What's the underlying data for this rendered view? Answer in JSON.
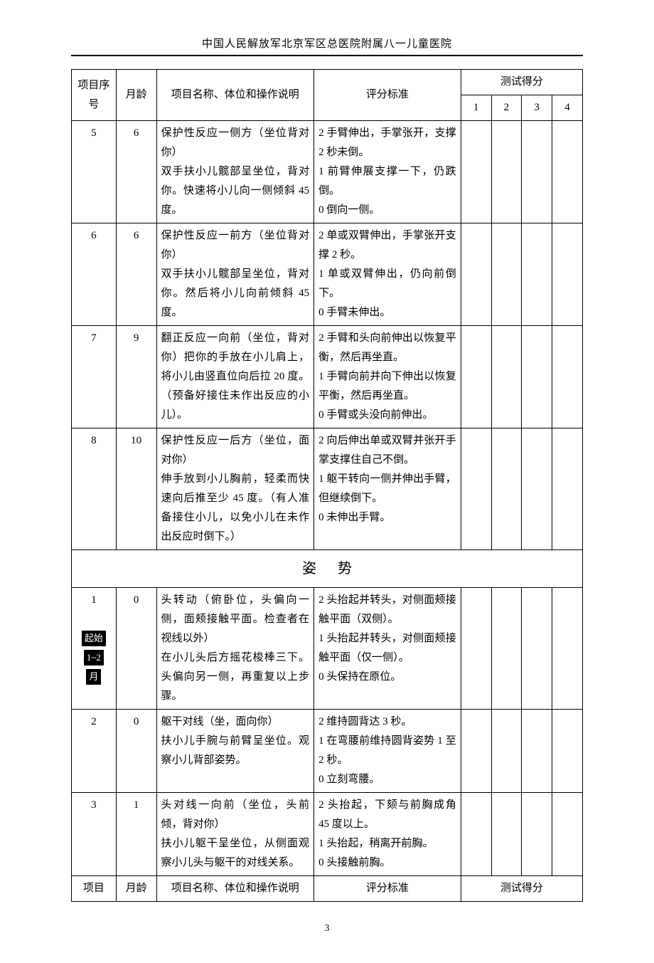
{
  "header": "中国人民解放军北京军区总医院附属八一儿童医院",
  "page_number": "3",
  "table": {
    "head": {
      "col_no": "项目序号",
      "col_age": "月龄",
      "col_name": "项目名称、体位和操作说明",
      "col_criteria": "评分标准",
      "col_score": "测试得分",
      "score_labels": [
        "1",
        "2",
        "3",
        "4"
      ]
    },
    "section_title": "姿势",
    "rows": [
      {
        "no": "5",
        "age": "6",
        "name": "保护性反应一侧方（坐位背对你）\n双手扶小儿髋部呈坐位，背对你。快速将小儿向一侧倾斜 45 度。",
        "criteria": "2 手臂伸出，手掌张开，支撑 2 秒未倒。\n1 前臂伸展支撑一下，仍跌倒。\n0 倒向一侧。"
      },
      {
        "no": "6",
        "age": "6",
        "name": "保护性反应一前方（坐位背对你）\n双手扶小儿髋部呈坐位，背对你。然后将小儿向前倾斜 45 度。",
        "criteria": "2 单或双臂伸出，手掌张开支撑 2 秒。\n1 单或双臂伸出，仍向前倒下。\n0 手臂未伸出。"
      },
      {
        "no": "7",
        "age": "9",
        "name": "翻正反应一向前（坐位，背对你）把你的手放在小儿肩上，将小儿由竖直位向后拉 20 度。（预备好接住未作出反应的小儿）。",
        "criteria": "2 手臂和头向前伸出以恢复平衡，然后再坐直。\n1 手臂向前并向下伸出以恢复平衡，然后再坐直。\n0 手臂或头没向前伸出。"
      },
      {
        "no": "8",
        "age": "10",
        "name": "保护性反应一后方（坐位，面对你）\n伸手放到小儿胸前，轻柔而快速向后推至少 45 度。（有人准备接住小儿，以免小儿在未作出反应时倒下。）",
        "criteria": "2 向后伸出单或双臂并张开手掌支撑住自己不倒。\n1 躯干转向一侧并伸出手臂，但继续倒下。\n0 未伸出手臂。"
      }
    ],
    "rows2": [
      {
        "no": "1",
        "age": "0",
        "badge1": "起始",
        "badge2": "1~2",
        "badge3": "月",
        "name": "头转动（俯卧位，头偏向一侧，面颊接触平面。检查者在视线以外）\n在小儿头后方摇花梭棒三下。头偏向另一侧，再重复以上步骤。",
        "criteria": "2 头抬起并转头，对侧面颊接触平面（双侧）。\n1 头抬起并转头，对侧面颊接触平面（仅一侧）。\n0 头保持在原位。"
      },
      {
        "no": "2",
        "age": "0",
        "name": "躯干对线（坐，面向你）\n扶小儿手腕与前臂呈坐位。观察小儿背部姿势。",
        "criteria": "2 维持圆背达 3 秒。\n1 在弯腰前维持圆背姿势 1 至 2 秒。\n0 立刻弯腰。"
      },
      {
        "no": "3",
        "age": "1",
        "name": "头对线一向前（坐位，头前倾，背对你）\n扶小儿躯干呈坐位，从侧面观察小儿头与躯干的对线关系。",
        "criteria": "2 头抬起，下颏与前胸成角 45 度以上。\n1 头抬起，稍离开前胸。\n0 头接触前胸。"
      }
    ],
    "foot": {
      "col_no": "项目",
      "col_age": "月龄",
      "col_name": "项目名称、体位和操作说明",
      "col_criteria": "评分标准",
      "col_score": "测试得分"
    }
  }
}
